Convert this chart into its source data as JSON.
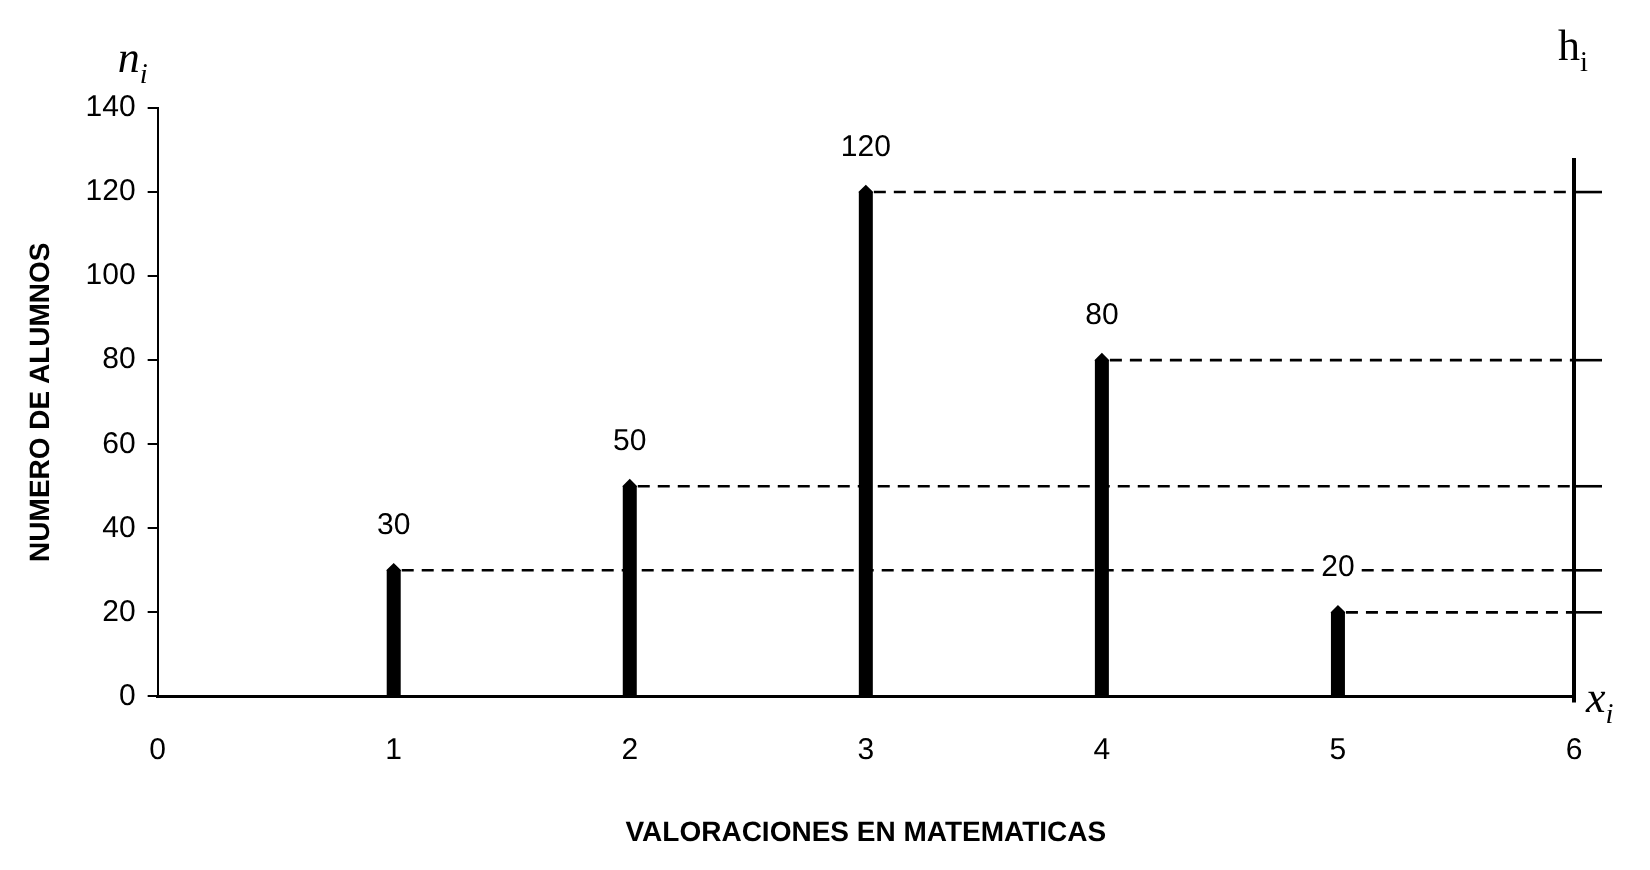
{
  "chart_data": {
    "type": "lollipop",
    "xlabel": "VALORACIONES EN MATEMATICAS",
    "ylabel": "NUMERO DE ALUMNOS",
    "x": [
      1,
      2,
      3,
      4,
      5
    ],
    "series": [
      {
        "color": "#000000",
        "values": [
          30,
          50,
          120,
          80,
          20
        ]
      }
    ],
    "marker": "diamond",
    "data_labels": true,
    "xlim": [
      0,
      6
    ],
    "xticks": [
      0,
      1,
      2,
      3,
      4,
      5,
      6
    ],
    "ylim": [
      0,
      140
    ],
    "yticks": [
      0,
      20,
      40,
      60,
      80,
      100,
      120,
      140
    ],
    "legend": false,
    "ref_lines": [
      {
        "axis": "y",
        "value": 30,
        "line_style": "dashed"
      },
      {
        "axis": "y",
        "value": 50,
        "line_style": "dashed"
      },
      {
        "axis": "y",
        "value": 120,
        "line_style": "dashed"
      },
      {
        "axis": "y",
        "value": 80,
        "line_style": "dashed"
      },
      {
        "axis": "y",
        "value": 20,
        "line_style": "dashed"
      },
      {
        "axis": "x",
        "value": 6,
        "label": "h$_{i}$",
        "line_style": "solid"
      }
    ],
    "annotations": [
      "n$_{i}$",
      "x$_{i}$"
    ]
  }
}
